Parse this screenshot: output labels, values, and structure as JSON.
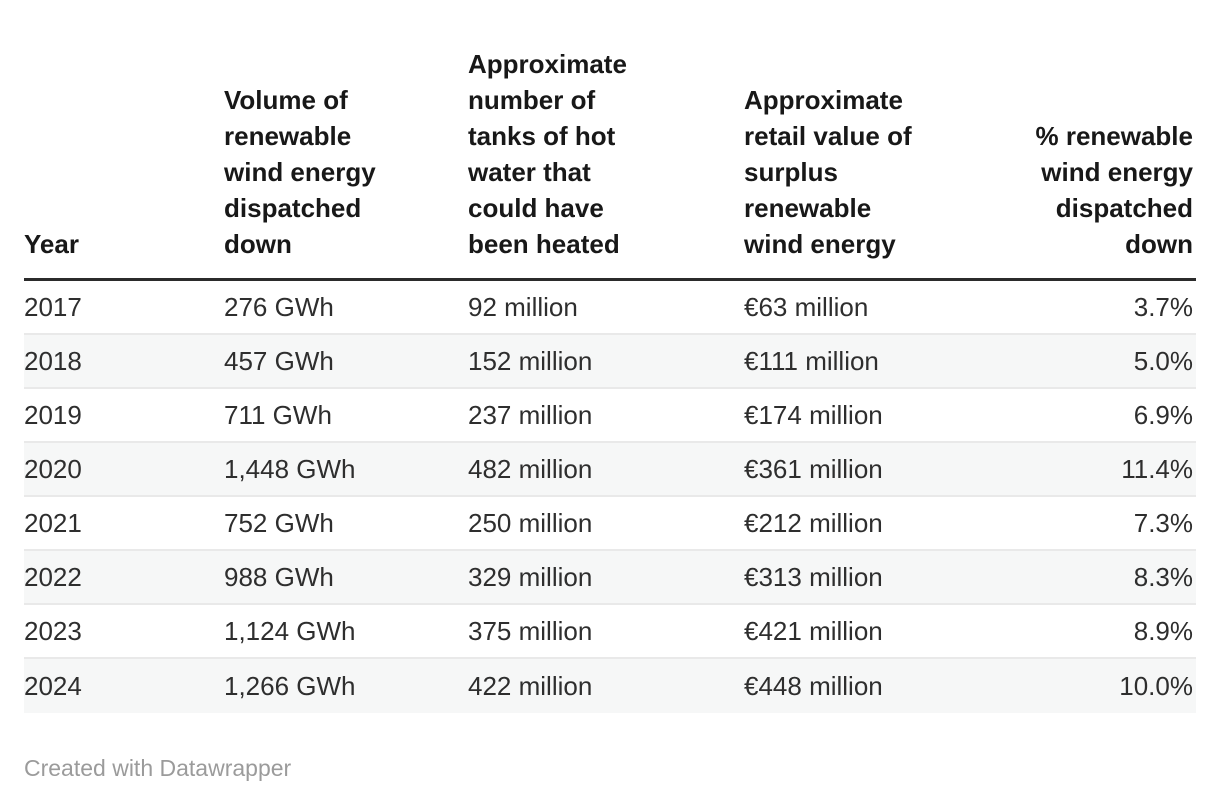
{
  "table": {
    "columns": [
      {
        "id": "year",
        "label": "Year",
        "align": "left"
      },
      {
        "id": "volume",
        "label": "Volume of\nrenewable\nwind energy\ndispatched\ndown",
        "align": "left"
      },
      {
        "id": "tanks",
        "label": "Approximate\nnumber of\ntanks of hot\nwater that\ncould have\nbeen heated",
        "align": "left"
      },
      {
        "id": "value",
        "label": "Approximate\nretail value of\nsurplus\nrenewable\nwind energy",
        "align": "left"
      },
      {
        "id": "pct",
        "label": "% renewable\nwind energy\ndispatched\ndown",
        "align": "right"
      }
    ],
    "rows": [
      [
        "2017",
        "276 GWh",
        "92 million",
        "€63 million",
        "3.7%"
      ],
      [
        "2018",
        "457 GWh",
        "152 million",
        "€111 million",
        "5.0%"
      ],
      [
        "2019",
        "711 GWh",
        "237 million",
        "€174 million",
        "6.9%"
      ],
      [
        "2020",
        "1,448 GWh",
        "482 million",
        "€361 million",
        "11.4%"
      ],
      [
        "2021",
        "752 GWh",
        "250 million",
        "€212 million",
        "7.3%"
      ],
      [
        "2022",
        "988 GWh",
        "329 million",
        "€313 million",
        "8.3%"
      ],
      [
        "2023",
        "1,124 GWh",
        "375 million",
        "€421 million",
        "8.9%"
      ],
      [
        "2024",
        "1,266 GWh",
        "422 million",
        "€448 million",
        "10.0%"
      ]
    ]
  },
  "chart_data": {
    "type": "table",
    "columns": [
      "Year",
      "Volume of renewable wind energy dispatched down",
      "Approximate number of tanks of hot water that could have been heated",
      "Approximate retail value of surplus renewable wind energy",
      "% renewable wind energy dispatched down"
    ],
    "series": {
      "year": [
        2017,
        2018,
        2019,
        2020,
        2021,
        2022,
        2023,
        2024
      ],
      "volume_gwh": [
        276,
        457,
        711,
        1448,
        752,
        988,
        1124,
        1266
      ],
      "tanks_millions": [
        92,
        152,
        237,
        482,
        250,
        329,
        375,
        422
      ],
      "retail_value_eur_millions": [
        63,
        111,
        174,
        361,
        212,
        313,
        421,
        448
      ],
      "pct_dispatched_down": [
        3.7,
        5.0,
        6.9,
        11.4,
        7.3,
        8.3,
        8.9,
        10.0
      ]
    }
  },
  "footer": {
    "credit": "Created with Datawrapper"
  },
  "colors": {
    "background": "#ffffff",
    "header_text": "#181818",
    "header_rule": "#2b2b2b",
    "body_text": "#2e2e2e",
    "row_stripe": "#f6f7f7",
    "row_divider": "#e9e9e9",
    "footer_text": "#9b9b9b"
  }
}
